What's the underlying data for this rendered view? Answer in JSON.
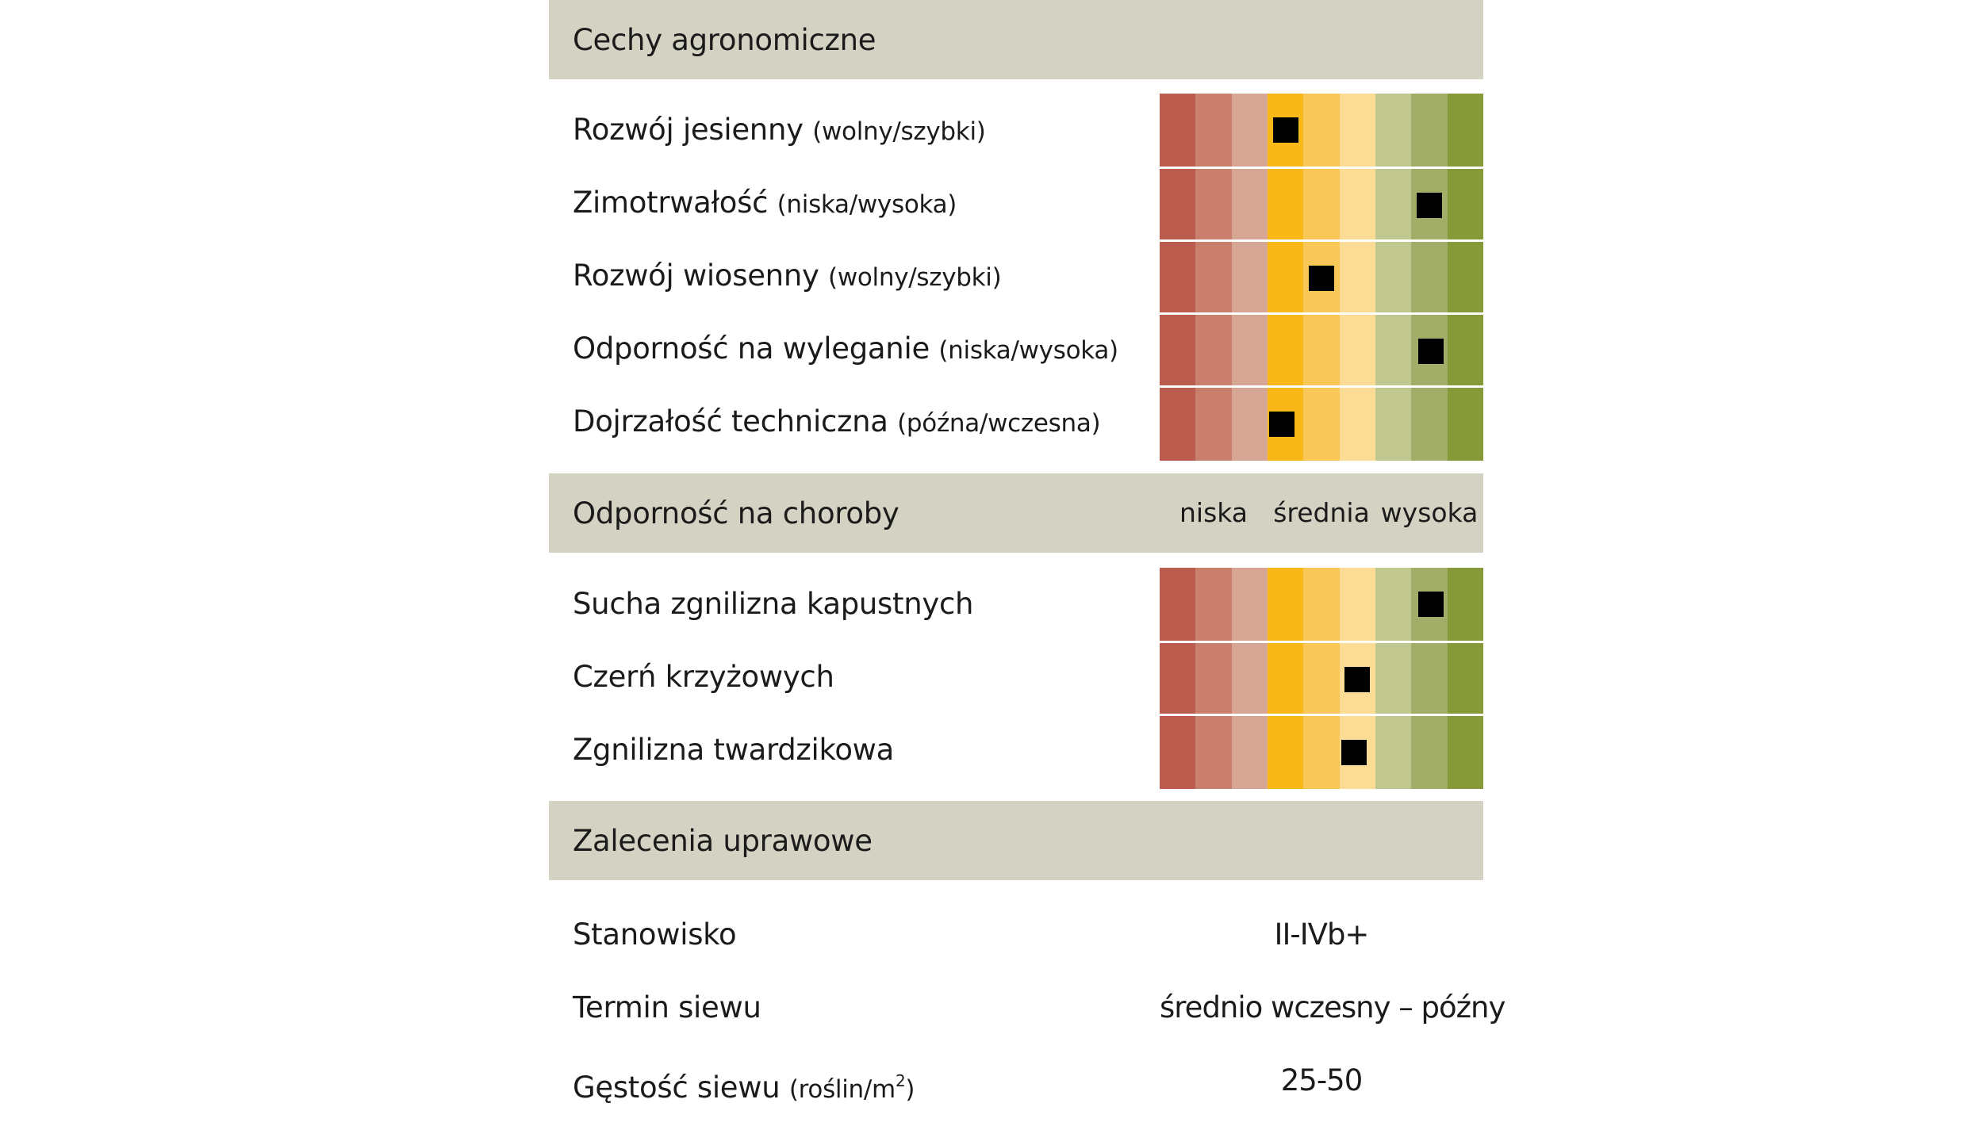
{
  "palette": [
    "#bb5c4f",
    "#c97f6c",
    "#d6a594",
    "#f8b818",
    "#f9c758",
    "#fcdb94",
    "#c0c78f",
    "#a2ad67",
    "#879a3a"
  ],
  "sections": {
    "agronomic": {
      "title": "Cechy agronomiczne",
      "rows": [
        {
          "name": "Rozwój jesienny",
          "hint": "(wolny/szybki)",
          "rating": 3.5
        },
        {
          "name": "Zimotrwałość",
          "hint": "(niska/wysoka)",
          "rating": 7.5
        },
        {
          "name": "Rozwój wiosenny",
          "hint": "(wolny/szybki)",
          "rating": 4.5
        },
        {
          "name": "Odporność na wyleganie",
          "hint": "(niska/wysoka)",
          "rating": 7.55
        },
        {
          "name": "Dojrzałość techniczna",
          "hint": "(późna/wczesna)",
          "rating": 3.4
        }
      ]
    },
    "disease": {
      "title": "Odporność na choroby",
      "scale_labels": {
        "low": "niska",
        "mid": "średnia",
        "high": "wysoka"
      },
      "rows": [
        {
          "name": "Sucha zgnilizna kapustnych",
          "rating": 7.55
        },
        {
          "name": "Czerń krzyżowych",
          "rating": 5.5
        },
        {
          "name": "Zgnilizna twardzikowa",
          "rating": 5.4
        }
      ]
    },
    "recommendations": {
      "title": "Zalecenia uprawowe",
      "rows": [
        {
          "name": "Stanowisko",
          "value": "II-IVb+"
        },
        {
          "name": "Termin siewu",
          "value": "średnio wczesny – późny"
        },
        {
          "name": "Gęstość siewu",
          "hint_prefix": "(roślin/m",
          "hint_sup": "2",
          "hint_suffix": ")",
          "value": "25-50"
        }
      ]
    }
  }
}
